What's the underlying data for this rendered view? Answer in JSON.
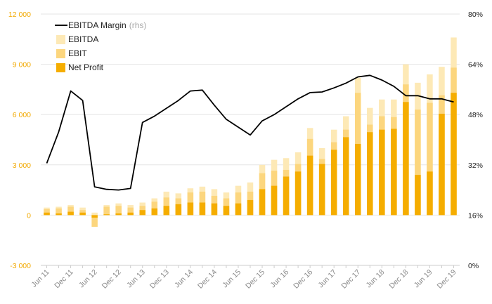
{
  "chart_data": {
    "type": "bar+line",
    "categories": [
      "Jun 11",
      "Sep 11",
      "Dec 11",
      "Mar 12",
      "Jun 12",
      "Sep 12",
      "Dec 12",
      "Mar 13",
      "Jun 13",
      "Sep 13",
      "Dec 13",
      "Mar 14",
      "Jun 14",
      "Sep 14",
      "Dec 14",
      "Mar 15",
      "Jun 15",
      "Sep 15",
      "Dec 15",
      "Mar 16",
      "Jun 16",
      "Sep 16",
      "Dec 16",
      "Mar 17",
      "Jun 17",
      "Sep 17",
      "Dec 17",
      "Mar 18",
      "Jun 18",
      "Sep 18",
      "Dec 18",
      "Mar 19",
      "Jun 19",
      "Sep 19",
      "Dec 19"
    ],
    "x_tick_labels": [
      "Jun 11",
      "Dec 11",
      "Jun 12",
      "Dec 12",
      "Jun 13",
      "Dec 13",
      "Jun 14",
      "Dec 14",
      "Jun 15",
      "Dec 15",
      "Jun 16",
      "Dec 16",
      "Jun 17",
      "Dec 17",
      "Jun 18",
      "Dec 18",
      "Jun 19",
      "Dec 19"
    ],
    "series": [
      {
        "name": "EBITDA",
        "kind": "bar",
        "axis": "left",
        "color": "#FDE9B6",
        "values": [
          450,
          500,
          600,
          450,
          150,
          600,
          700,
          600,
          750,
          1000,
          1400,
          1300,
          1600,
          1700,
          1550,
          1350,
          1750,
          1950,
          3000,
          3300,
          3400,
          3750,
          5200,
          4000,
          5100,
          5900,
          8200,
          6400,
          6900,
          6900,
          9000,
          7900,
          8400,
          8850,
          10600
        ]
      },
      {
        "name": "EBIT",
        "kind": "bar",
        "axis": "left",
        "color": "#FCD67E",
        "values": [
          350,
          400,
          500,
          300,
          -700,
          500,
          550,
          450,
          550,
          800,
          1050,
          1000,
          1350,
          1400,
          1150,
          1000,
          1350,
          1400,
          2500,
          2650,
          2700,
          3050,
          4550,
          3350,
          4350,
          5100,
          7300,
          5400,
          5900,
          5850,
          7800,
          6300,
          6700,
          7150,
          8800
        ]
      },
      {
        "name": "Net Profit",
        "kind": "bar",
        "axis": "left",
        "color": "#F5AD00",
        "values": [
          150,
          100,
          200,
          150,
          -150,
          50,
          100,
          150,
          300,
          400,
          550,
          650,
          750,
          750,
          700,
          550,
          700,
          900,
          1550,
          1750,
          2300,
          2600,
          3550,
          3050,
          3900,
          4650,
          4250,
          4950,
          5100,
          5150,
          6750,
          2400,
          2600,
          6050,
          7300
        ]
      },
      {
        "name": "EBITDA Margin",
        "note": "(rhs)",
        "kind": "line",
        "axis": "right",
        "color": "#000000",
        "values": [
          32.5,
          42.5,
          55.5,
          52.5,
          25.0,
          24.2,
          24.0,
          24.5,
          45.5,
          47.5,
          50.0,
          52.5,
          55.5,
          55.8,
          51.0,
          46.5,
          44.0,
          41.5,
          46.0,
          48.0,
          50.5,
          53.0,
          55.0,
          55.2,
          56.5,
          58.0,
          60.0,
          60.5,
          59.0,
          57.0,
          54.0,
          54.0,
          53.0,
          53.0,
          52.0
        ]
      }
    ],
    "y_left": {
      "min": -3000,
      "max": 12000,
      "ticks": [
        -3000,
        0,
        3000,
        6000,
        9000,
        12000
      ],
      "tick_labels": [
        "-3 000",
        "0",
        "3 000",
        "6 000",
        "9 000",
        "12 000"
      ],
      "color": "#F2A900"
    },
    "y_right": {
      "min": 0,
      "max": 80,
      "ticks": [
        0,
        16,
        32,
        48,
        64,
        80
      ],
      "tick_labels": [
        "0%",
        "16%",
        "32%",
        "48%",
        "64%",
        "80%"
      ]
    },
    "grid": true,
    "legend": {
      "placement": "top-left",
      "order": [
        "EBITDA Margin",
        "EBITDA",
        "EBIT",
        "Net Profit"
      ]
    }
  }
}
